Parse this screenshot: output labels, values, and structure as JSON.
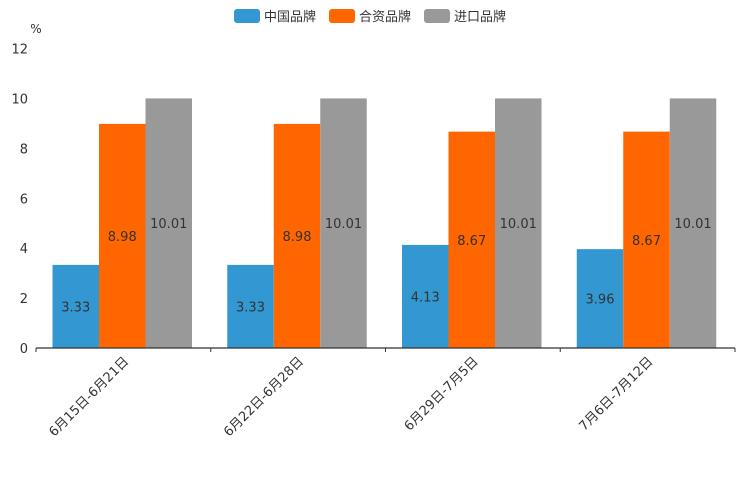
{
  "chart_data": {
    "type": "bar",
    "title": "",
    "xlabel": "",
    "ylabel": "%",
    "ylim": [
      0,
      12
    ],
    "yticks": [
      "0",
      "2",
      "4",
      "6",
      "8",
      "10",
      "12"
    ],
    "grid": false,
    "legend_position": "top-center",
    "categories": [
      "6月15日-6月21日",
      "6月22日-6月28日",
      "6月29日-7月5日",
      "7月6日-7月12日"
    ],
    "series": [
      {
        "name": "中国品牌",
        "color": "#3398d1",
        "values": [
          3.33,
          3.33,
          4.13,
          3.96
        ],
        "labels": [
          "3.33",
          "3.33",
          "4.13",
          "3.96"
        ]
      },
      {
        "name": "合资品牌",
        "color": "#ff6600",
        "values": [
          8.98,
          8.98,
          8.67,
          8.67
        ],
        "labels": [
          "8.98",
          "8.98",
          "8.67",
          "8.67"
        ]
      },
      {
        "name": "进口品牌",
        "color": "#999999",
        "values": [
          10,
          10,
          10,
          10
        ],
        "labels": [
          "10.01",
          "10.01",
          "10.01",
          "10.01"
        ]
      }
    ]
  }
}
